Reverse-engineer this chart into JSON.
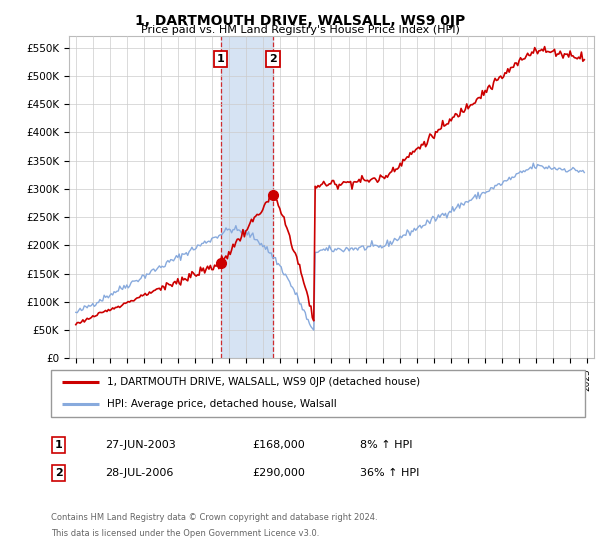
{
  "title": "1, DARTMOUTH DRIVE, WALSALL, WS9 0JP",
  "subtitle": "Price paid vs. HM Land Registry's House Price Index (HPI)",
  "ylabel_ticks": [
    "£0",
    "£50K",
    "£100K",
    "£150K",
    "£200K",
    "£250K",
    "£300K",
    "£350K",
    "£400K",
    "£450K",
    "£500K",
    "£550K"
  ],
  "ytick_values": [
    0,
    50000,
    100000,
    150000,
    200000,
    250000,
    300000,
    350000,
    400000,
    450000,
    500000,
    550000
  ],
  "ylim": [
    0,
    570000
  ],
  "legend_line1": "1, DARTMOUTH DRIVE, WALSALL, WS9 0JP (detached house)",
  "legend_line2": "HPI: Average price, detached house, Walsall",
  "transaction1_label": "1",
  "transaction1_date": "27-JUN-2003",
  "transaction1_price": "£168,000",
  "transaction1_hpi": "8% ↑ HPI",
  "transaction2_label": "2",
  "transaction2_date": "28-JUL-2006",
  "transaction2_price": "£290,000",
  "transaction2_hpi": "36% ↑ HPI",
  "footnote1": "Contains HM Land Registry data © Crown copyright and database right 2024.",
  "footnote2": "This data is licensed under the Open Government Licence v3.0.",
  "line_color_property": "#cc0000",
  "line_color_hpi": "#88aadd",
  "bg_color": "#ffffff",
  "grid_color": "#cccccc",
  "shade_color": "#ccddf0",
  "transaction1_x": 2003.49,
  "transaction1_y": 168000,
  "transaction2_x": 2006.57,
  "transaction2_y": 290000,
  "xlim_left": 1994.6,
  "xlim_right": 2025.4
}
